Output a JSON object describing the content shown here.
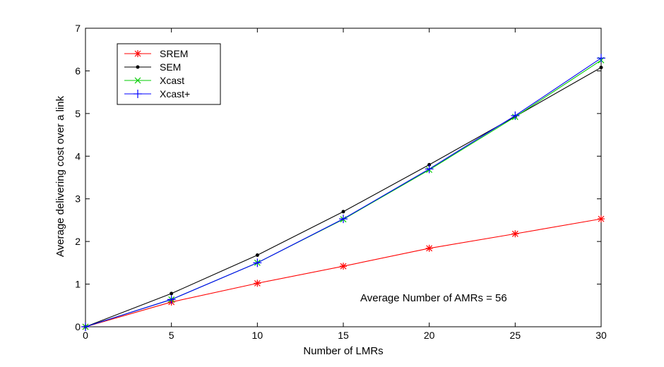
{
  "chart_data": {
    "type": "line",
    "title": "",
    "xlabel": "Number of LMRs",
    "ylabel": "Average delivering cost over a link",
    "xlim": [
      0,
      30
    ],
    "ylim": [
      0,
      7
    ],
    "xticks": [
      0,
      5,
      10,
      15,
      20,
      25,
      30
    ],
    "yticks": [
      0,
      1,
      2,
      3,
      4,
      5,
      6,
      7
    ],
    "x": [
      0,
      5,
      10,
      15,
      20,
      25,
      30
    ],
    "grid": false,
    "legend_position": "top-left",
    "series": [
      {
        "name": "SREM",
        "color": "#ff0000",
        "marker": "asterisk",
        "values": [
          0,
          0.58,
          1.02,
          1.42,
          1.84,
          2.18,
          2.53
        ]
      },
      {
        "name": "SEM",
        "color": "#000000",
        "marker": "dot",
        "values": [
          0,
          0.78,
          1.68,
          2.7,
          3.8,
          4.93,
          6.08
        ]
      },
      {
        "name": "Xcast",
        "color": "#00cc00",
        "marker": "x",
        "values": [
          0,
          0.64,
          1.5,
          2.52,
          3.68,
          4.92,
          6.25
        ]
      },
      {
        "name": "Xcast+",
        "color": "#0000ff",
        "marker": "plus",
        "values": [
          0,
          0.64,
          1.5,
          2.53,
          3.7,
          4.95,
          6.3
        ]
      }
    ],
    "annotations": [
      {
        "text": "Average Number of AMRs = 56"
      }
    ]
  }
}
